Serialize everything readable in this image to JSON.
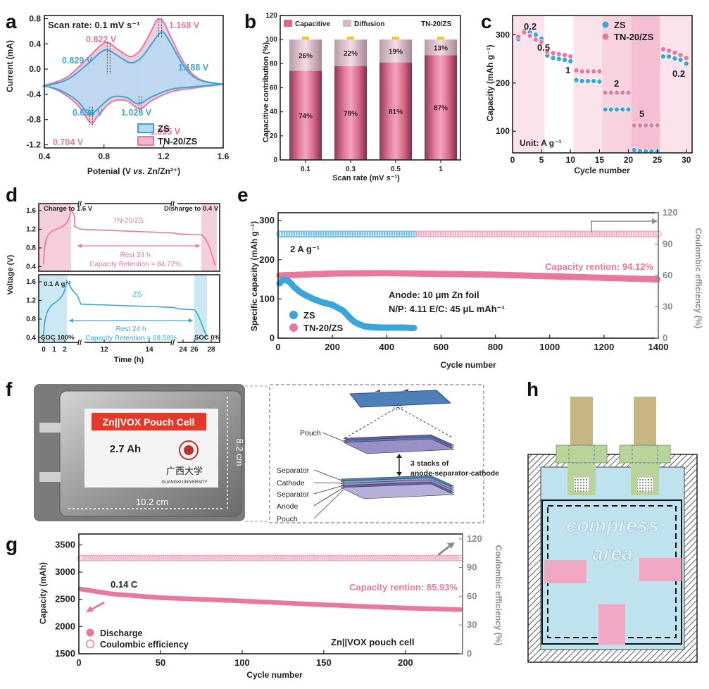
{
  "colors": {
    "zs": "#3AA6D8",
    "tn": "#E8789C",
    "tnFill": "#F2B5C9",
    "zsFill": "#BBD8F2",
    "grey": "#8c8c8c",
    "red": "#E03A2A"
  },
  "chart_data": [
    {
      "panel": "a",
      "type": "line",
      "title": "Scan rate: 0.1 mV s⁻¹",
      "xlabel_pre": "Potenial (V ",
      "xlabel_it": "vs.",
      "xlabel_post": " Zn/Zn²⁺)",
      "ylabel": "Current (mA)",
      "xlim": [
        0.4,
        1.6
      ],
      "ylim": [
        -1.25,
        0.85
      ],
      "xticks": [
        "0.4",
        "0.8",
        "1.2",
        "1.6"
      ],
      "yticks": [
        "-1.2",
        "-0.8",
        "-0.4",
        "0.0",
        "0.4",
        "0.8"
      ],
      "peaks": [
        "0.822 V",
        "1.168 V",
        "0.829 V",
        "1.188 V",
        "0.696 V",
        "1.028 V",
        "1.035 V",
        "0.704 V"
      ],
      "legend": [
        "ZS",
        "TN-20/ZS"
      ],
      "series": [
        {
          "name": "ZS",
          "upper": [
            [
              0.4,
              -0.27
            ],
            [
              0.55,
              -0.17
            ],
            [
              0.68,
              0.06
            ],
            [
              0.78,
              0.27
            ],
            [
              0.83,
              0.3
            ],
            [
              0.9,
              0.2
            ],
            [
              0.98,
              0.1
            ],
            [
              1.05,
              0.18
            ],
            [
              1.12,
              0.4
            ],
            [
              1.17,
              0.56
            ],
            [
              1.2,
              0.58
            ],
            [
              1.25,
              0.4
            ],
            [
              1.35,
              0.0
            ],
            [
              1.45,
              -0.18
            ],
            [
              1.6,
              -0.24
            ]
          ],
          "lower": [
            [
              1.6,
              -0.24
            ],
            [
              1.4,
              -0.28
            ],
            [
              1.25,
              -0.32
            ],
            [
              1.12,
              -0.44
            ],
            [
              1.03,
              -0.55
            ],
            [
              0.95,
              -0.45
            ],
            [
              0.85,
              -0.45
            ],
            [
              0.75,
              -0.65
            ],
            [
              0.7,
              -0.72
            ],
            [
              0.62,
              -0.5
            ],
            [
              0.5,
              -0.33
            ],
            [
              0.4,
              -0.27
            ]
          ]
        },
        {
          "name": "TN-20/ZS",
          "upper": [
            [
              0.4,
              -0.26
            ],
            [
              0.55,
              -0.13
            ],
            [
              0.68,
              0.15
            ],
            [
              0.78,
              0.38
            ],
            [
              0.83,
              0.42
            ],
            [
              0.9,
              0.3
            ],
            [
              0.98,
              0.2
            ],
            [
              1.05,
              0.32
            ],
            [
              1.12,
              0.62
            ],
            [
              1.16,
              0.79
            ],
            [
              1.2,
              0.75
            ],
            [
              1.25,
              0.5
            ],
            [
              1.35,
              0.05
            ],
            [
              1.45,
              -0.17
            ],
            [
              1.6,
              -0.24
            ]
          ],
          "lower": [
            [
              1.6,
              -0.24
            ],
            [
              1.4,
              -0.3
            ],
            [
              1.25,
              -0.36
            ],
            [
              1.12,
              -0.5
            ],
            [
              1.04,
              -0.63
            ],
            [
              0.95,
              -0.5
            ],
            [
              0.85,
              -0.52
            ],
            [
              0.76,
              -0.74
            ],
            [
              0.71,
              -0.85
            ],
            [
              0.62,
              -0.56
            ],
            [
              0.5,
              -0.35
            ],
            [
              0.4,
              -0.26
            ]
          ]
        }
      ]
    },
    {
      "panel": "b",
      "type": "bar",
      "categories": [
        "0.1",
        "0.3",
        "0.5",
        "1"
      ],
      "capacitive": [
        74,
        78,
        81,
        87
      ],
      "diffusion": [
        26,
        22,
        19,
        13
      ],
      "labels_cap": [
        "74%",
        "78%",
        "81%",
        "87%"
      ],
      "labels_diff": [
        "26%",
        "22%",
        "19%",
        "13%"
      ],
      "xlabel": "Scan rate (mV s⁻¹)",
      "ylabel": "Capacitive contribution (%)",
      "ylim": [
        0,
        120
      ],
      "yticks": [
        "0",
        "20",
        "40",
        "60",
        "80",
        "100",
        "120"
      ],
      "legend": [
        "Capacitive",
        "Diffusion"
      ],
      "tag": "TN-20/ZS"
    },
    {
      "panel": "c",
      "type": "scatter",
      "xlabel": "Cycle number",
      "ylabel": "Capacity (mAh g⁻¹)",
      "xlim": [
        0,
        31
      ],
      "ylim": [
        55,
        340
      ],
      "xticks": [
        "0",
        "5",
        "10",
        "15",
        "20",
        "25",
        "30"
      ],
      "yticks": [
        "100",
        "200",
        "300"
      ],
      "legend": [
        "ZS",
        "TN-20/ZS"
      ],
      "rates": [
        "0.2",
        "0.5",
        "1",
        "2",
        "5",
        "0.2"
      ],
      "unit": "Unit: A g⁻¹",
      "series": [
        {
          "name": "ZS",
          "values": [
            291,
            308,
            305,
            300,
            292,
            257,
            252,
            250,
            248,
            245,
            206,
            204,
            204,
            204,
            203,
            145,
            145,
            145,
            145,
            145,
            61,
            59,
            58,
            58,
            58,
            255,
            255,
            251,
            248,
            240
          ]
        },
        {
          "name": "TN-20/ZS",
          "values": [
            296,
            305,
            298,
            290,
            285,
            265,
            262,
            260,
            258,
            255,
            226,
            224,
            224,
            224,
            224,
            180,
            180,
            180,
            180,
            180,
            112,
            112,
            112,
            112,
            112,
            270,
            267,
            263,
            258,
            252
          ]
        }
      ]
    },
    {
      "panel": "d",
      "type": "line",
      "xlabel": "Time (h)",
      "ylabel": "Voltage (V)",
      "xticks": [
        "0",
        "1",
        "2",
        "12",
        "14",
        "24",
        "26",
        "28"
      ],
      "yticks": [
        "0.4",
        "0.8",
        "1.2",
        "1.6"
      ],
      "top": {
        "title": "TN-20/ZS",
        "charge": "Charge to 1.6 V",
        "discharge": "Disharge to 0.4 V",
        "rest": "Rest 24 h",
        "retention": "Capacity Retention = 84.72%"
      },
      "bottom": {
        "title": "ZS",
        "rate": "0.1 A g⁻¹",
        "rest": "Rest 24 h",
        "retention": "Capacity Retention = 69.58%",
        "soc100": "SOC 100%",
        "soc0": "SOC 0%"
      }
    },
    {
      "panel": "e",
      "type": "scatter",
      "xlabel": "Cycle number",
      "ylabel": "Specific capacity (mAh g⁻¹)",
      "y2label": "Coulombic efficiency (%)",
      "xlim": [
        0,
        1400
      ],
      "ylim": [
        0,
        320
      ],
      "y2lim": [
        0,
        120
      ],
      "xticks": [
        "0",
        "200",
        "400",
        "600",
        "800",
        "1000",
        "1200",
        "1400"
      ],
      "yticks": [
        "0",
        "100",
        "200",
        "300"
      ],
      "y2ticks": [
        "0",
        "30",
        "60",
        "90",
        "120"
      ],
      "rate": "2 A g⁻¹",
      "anode": "Anode: 10 μm Zn foil",
      "np": "N/P: 4.11   E/C: 45 μL mAh⁻¹",
      "retention": "Capacity rention: 94.12%",
      "legend": [
        "ZS",
        "TN-20/ZS"
      ],
      "series": [
        {
          "name": "ZS capacity",
          "x": [
            5,
            20,
            40,
            60,
            80,
            100,
            130,
            160,
            200,
            240,
            260,
            280,
            300,
            320,
            350,
            380,
            420,
            460,
            500
          ],
          "y": [
            140,
            150,
            145,
            130,
            118,
            110,
            100,
            92,
            85,
            70,
            55,
            42,
            35,
            30,
            28,
            27,
            27,
            27,
            26
          ]
        },
        {
          "name": "TN-20/ZS capacity",
          "x": [
            5,
            200,
            400,
            600,
            800,
            1000,
            1200,
            1400
          ],
          "y": [
            160,
            165,
            166,
            164,
            162,
            158,
            154,
            150
          ]
        },
        {
          "name": "ZS CE",
          "x": [
            5,
            500
          ],
          "y": [
            99.5,
            99.5
          ]
        },
        {
          "name": "TN-20/ZS CE",
          "x": [
            5,
            1400
          ],
          "y": [
            99.7,
            99.7
          ]
        }
      ]
    },
    {
      "panel": "g",
      "type": "scatter",
      "xlabel": "Cycle number",
      "ylabel": "Capacity (mAh)",
      "y2label": "Coulombic efficiency (%)",
      "xlim": [
        0,
        235
      ],
      "ylim": [
        1500,
        3700
      ],
      "y2lim": [
        0,
        125
      ],
      "xticks": [
        "0",
        "50",
        "100",
        "150",
        "200"
      ],
      "yticks": [
        "1500",
        "2000",
        "2500",
        "3000",
        "3500"
      ],
      "y2ticks": [
        "0",
        "30",
        "60",
        "90",
        "120"
      ],
      "rate": "0.14 C",
      "retention": "Capacity rention: 85.93%",
      "cell": "Zn||VOX pouch cell",
      "legend": [
        "Discharge",
        "Coulombic efficiency"
      ],
      "series": [
        {
          "name": "Discharge",
          "x": [
            1,
            20,
            50,
            100,
            150,
            200,
            235
          ],
          "y": [
            2690,
            2600,
            2530,
            2470,
            2400,
            2340,
            2310
          ]
        },
        {
          "name": "CE",
          "x": [
            1,
            235
          ],
          "y": [
            100,
            100
          ]
        }
      ]
    }
  ],
  "panel_f": {
    "banner": "Zn||VOX Pouch Cell",
    "capacity": "2.7 Ah",
    "dim_h": "8.2 cm",
    "dim_w": "10.2 cm",
    "logo_text": "广西大学",
    "logo_sub": "GUANGXI UNIVERSITY",
    "layers_top": "Pouch",
    "stack_note_1": "3 stacks of",
    "stack_note_2": "anode-separator-cathode",
    "layers": [
      "Separator",
      "Cathode",
      "Separator",
      "Anode",
      "Pouch"
    ]
  },
  "panel_h": {
    "compress_1": "compress",
    "compress_2": "area"
  },
  "panels": [
    "a",
    "b",
    "c",
    "d",
    "e",
    "f",
    "g",
    "h"
  ]
}
